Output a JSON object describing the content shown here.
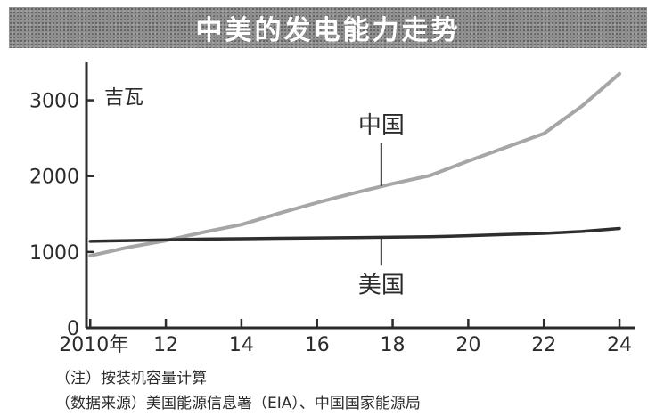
{
  "chart_data": {
    "type": "line",
    "title": "中美的发电能力走势",
    "unit_label": "吉瓦",
    "x": [
      2010,
      2011,
      2012,
      2013,
      2014,
      2015,
      2016,
      2017,
      2018,
      2019,
      2020,
      2021,
      2022,
      2023,
      2024
    ],
    "x_tick_values": [
      2010,
      2012,
      2014,
      2016,
      2018,
      2020,
      2022,
      2024
    ],
    "x_tick_labels": [
      "2010年",
      "12",
      "14",
      "16",
      "18",
      "20",
      "22",
      "24"
    ],
    "y_tick_values": [
      0,
      1000,
      2000,
      3000
    ],
    "y_tick_labels": [
      "0",
      "1000",
      "2000",
      "3000"
    ],
    "xlim": [
      2009.9,
      2024.4
    ],
    "ylim": [
      0,
      3500
    ],
    "grid": false,
    "series": [
      {
        "name": "中国",
        "color": "#a6a6a6",
        "values": [
          950,
          1060,
          1150,
          1260,
          1360,
          1510,
          1650,
          1780,
          1900,
          2010,
          2200,
          2380,
          2560,
          2920,
          3350
        ]
      },
      {
        "name": "美国",
        "color": "#2e2e2e",
        "values": [
          1140,
          1150,
          1160,
          1170,
          1175,
          1180,
          1185,
          1190,
          1195,
          1200,
          1215,
          1230,
          1245,
          1270,
          1310
        ]
      }
    ]
  },
  "footnotes": {
    "note": "（注）按装机容量计算",
    "source": "（数据来源）美国能源信息署（EIA）、中国国家能源局"
  }
}
